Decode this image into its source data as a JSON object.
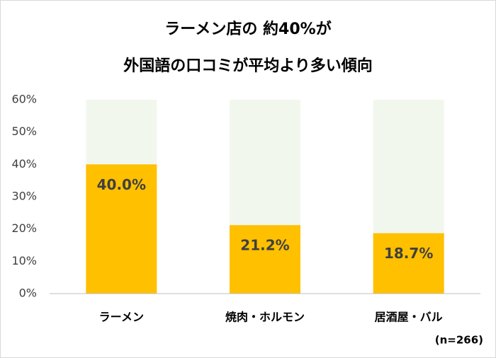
{
  "chart_data": {
    "type": "bar",
    "title": [
      "ラーメン店の 約40%が",
      "外国語の口コミが平均より多い傾向"
    ],
    "categories": [
      "ラーメン",
      "焼肉・ホルモン",
      "居酒屋・バル"
    ],
    "values": [
      40.0,
      21.2,
      18.7
    ],
    "value_labels": [
      "40.0%",
      "21.2%",
      "18.7%"
    ],
    "color": "#FFC000",
    "ylim": [
      0,
      60
    ],
    "yticks": [
      {
        "value": 0,
        "label": "0%"
      },
      {
        "value": 10,
        "label": "10%"
      },
      {
        "value": 20,
        "label": "20%"
      },
      {
        "value": 30,
        "label": "30%"
      },
      {
        "value": 40,
        "label": "40%"
      },
      {
        "value": 50,
        "label": "50%"
      },
      {
        "value": 60,
        "label": "60%"
      }
    ],
    "note": "(n=266)"
  }
}
